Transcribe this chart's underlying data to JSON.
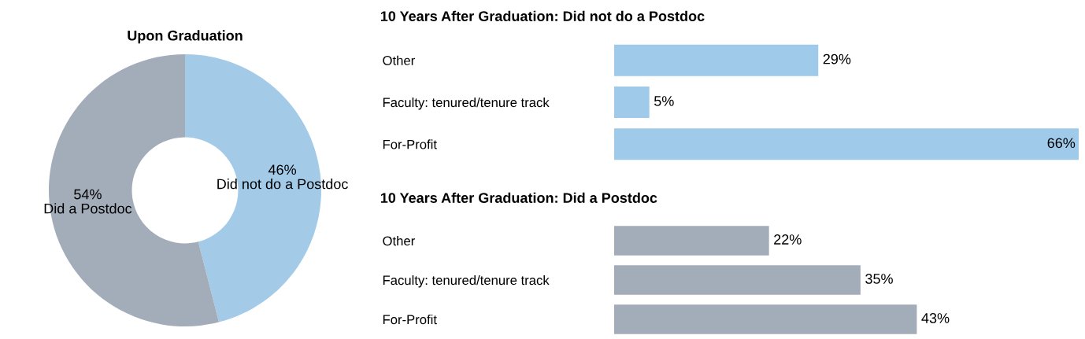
{
  "chart_data": [
    {
      "type": "donut",
      "title": "Upon Graduation",
      "categories": [
        "Did not do a Postdoc",
        "Did a Postdoc"
      ],
      "values": [
        46,
        54
      ],
      "value_labels": [
        "46%",
        "54%"
      ],
      "colors": [
        "#a3cbe8",
        "#a3adb9"
      ]
    },
    {
      "type": "bar",
      "orientation": "horizontal",
      "title": "10 Years After Graduation: Did not do a Postdoc",
      "categories": [
        "Other",
        "Faculty: tenured/tenure track",
        "For-Profit"
      ],
      "values": [
        29,
        5,
        66
      ],
      "value_labels": [
        "29%",
        "5%",
        "66%"
      ],
      "color": "#9fcae9"
    },
    {
      "type": "bar",
      "orientation": "horizontal",
      "title": "10 Years After Graduation: Did a Postdoc",
      "categories": [
        "Other",
        "Faculty: tenured/tenure track",
        "For-Profit"
      ],
      "values": [
        22,
        35,
        43
      ],
      "value_labels": [
        "22%",
        "35%",
        "43%"
      ],
      "color": "#a3adb9"
    }
  ]
}
